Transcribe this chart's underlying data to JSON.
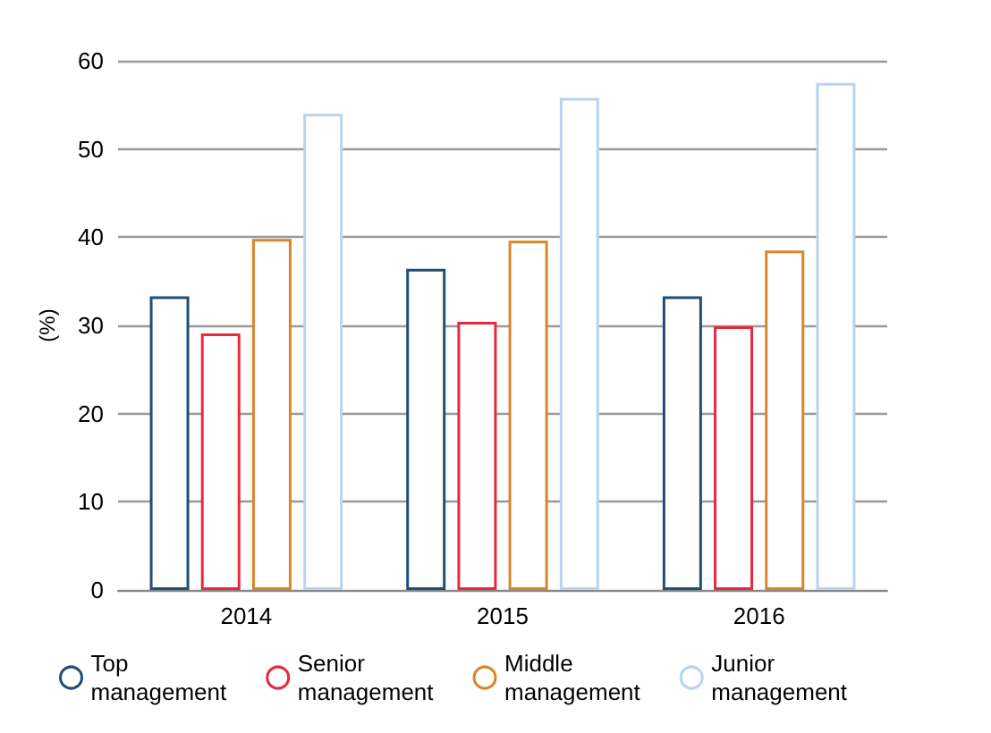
{
  "chart_data": {
    "type": "bar",
    "ylabel": "(%)",
    "categories": [
      "2014",
      "2015",
      "2016"
    ],
    "series": [
      {
        "name": "Top\nmanagement",
        "color": "#1f4e79",
        "values": [
          33.3,
          36.4,
          33.3
        ]
      },
      {
        "name": "Senior\nmanagement",
        "color": "#e8283c",
        "values": [
          29.1,
          30.4,
          29.9
        ]
      },
      {
        "name": "Middle\nmanagement",
        "color": "#d9862a",
        "values": [
          39.8,
          39.6,
          38.5
        ]
      },
      {
        "name": "Junior\nmanagement",
        "color": "#b9d3ee",
        "values": [
          54.0,
          55.8,
          57.5
        ]
      }
    ],
    "ylim": [
      0,
      60
    ],
    "yticks": [
      0,
      10,
      20,
      30,
      40,
      50,
      60
    ],
    "grid": "y",
    "legend": "bottom"
  }
}
